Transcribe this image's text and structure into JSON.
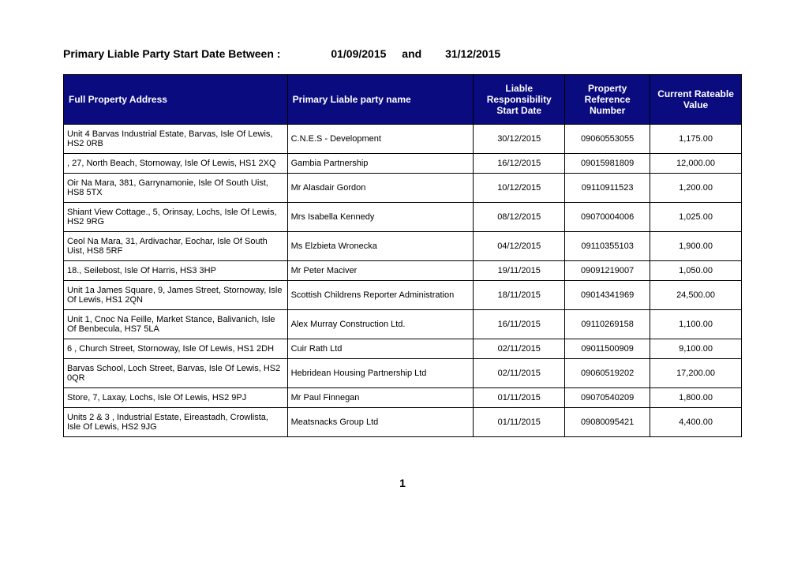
{
  "title": {
    "label": "Primary Liable Party Start Date Between :",
    "from": "01/09/2015",
    "connector": "and",
    "to": "31/12/2015"
  },
  "table": {
    "columns": [
      "Full Property Address",
      "Primary Liable party name",
      "Liable Responsibility Start Date",
      "Property Reference Number",
      "Current Rateable Value"
    ],
    "rows": [
      {
        "address": "Unit 4 Barvas Industrial Estate, Barvas, Isle Of Lewis, HS2 0RB",
        "name": "C.N.E.S - Development",
        "date": "30/12/2015",
        "ref": "09060553055",
        "val": "1,175.00"
      },
      {
        "address": ", 27, North Beach, Stornoway, Isle Of Lewis, HS1 2XQ",
        "name": "Gambia Partnership",
        "date": "16/12/2015",
        "ref": "09015981809",
        "val": "12,000.00"
      },
      {
        "address": "Oir Na Mara, 381, Garrynamonie, Isle Of South Uist, HS8 5TX",
        "name": "Mr Alasdair  Gordon",
        "date": "10/12/2015",
        "ref": "09110911523",
        "val": "1,200.00"
      },
      {
        "address": "Shiant View Cottage., 5, Orinsay, Lochs, Isle Of Lewis, HS2 9RG",
        "name": "Mrs Isabella  Kennedy",
        "date": "08/12/2015",
        "ref": "09070004006",
        "val": "1,025.00"
      },
      {
        "address": "Ceol Na Mara, 31, Ardivachar, Eochar, Isle Of South Uist, HS8 5RF",
        "name": "Ms Elzbieta  Wronecka",
        "date": "04/12/2015",
        "ref": "09110355103",
        "val": "1,900.00"
      },
      {
        "address": "18., Seilebost, Isle Of Harris, HS3 3HP",
        "name": "Mr Peter  Maciver",
        "date": "19/11/2015",
        "ref": "09091219007",
        "val": "1,050.00"
      },
      {
        "address": "Unit 1a James Square, 9, James Street, Stornoway, Isle Of Lewis, HS1 2QN",
        "name": "Scottish Childrens Reporter Administration",
        "date": "18/11/2015",
        "ref": "09014341969",
        "val": "24,500.00"
      },
      {
        "address": "Unit 1, Cnoc Na Feille, Market Stance, Balivanich, Isle Of Benbecula, HS7 5LA",
        "name": "Alex Murray Construction Ltd.",
        "date": "16/11/2015",
        "ref": "09110269158",
        "val": "1,100.00"
      },
      {
        "address": "6 , Church Street, Stornoway, Isle Of Lewis, HS1 2DH",
        "name": "Cuir Rath Ltd",
        "date": "02/11/2015",
        "ref": "09011500909",
        "val": "9,100.00"
      },
      {
        "address": "Barvas School, Loch Street, Barvas, Isle Of Lewis, HS2 0QR",
        "name": "Hebridean Housing Partnership Ltd",
        "date": "02/11/2015",
        "ref": "09060519202",
        "val": "17,200.00"
      },
      {
        "address": "Store, 7, Laxay, Lochs, Isle Of Lewis, HS2 9PJ",
        "name": "Mr Paul  Finnegan",
        "date": "01/11/2015",
        "ref": "09070540209",
        "val": "1,800.00"
      },
      {
        "address": "Units 2 & 3 , Industrial Estate, Eireastadh, Crowlista, Isle Of Lewis, HS2 9JG",
        "name": "Meatsnacks Group Ltd",
        "date": "01/11/2015",
        "ref": "09080095421",
        "val": "4,400.00"
      }
    ]
  },
  "page_number": "1",
  "style": {
    "header_bg": "#0b0b80",
    "header_fg": "#ffffff",
    "border_color": "#000000",
    "body_font_size_pt": 11,
    "header_font_size_pt": 12,
    "title_font_size_pt": 14
  }
}
